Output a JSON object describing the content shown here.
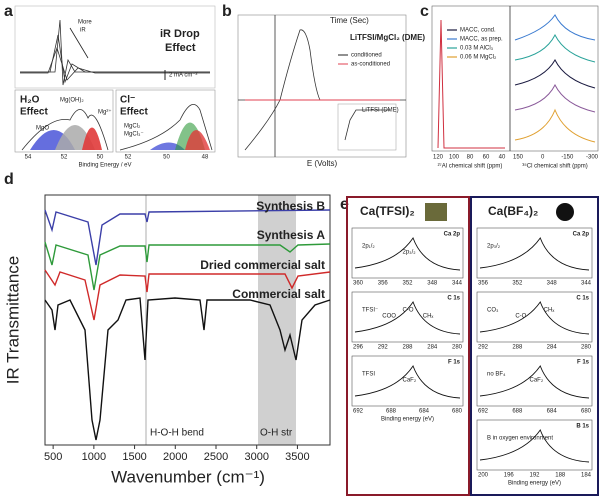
{
  "panel_a": {
    "label": "a",
    "title_1": "iR Drop",
    "title_2": "Effect",
    "arrow_1": "More",
    "arrow_2": "iR",
    "scale": "2 mA cm⁻²",
    "h2o_1": "H₂O",
    "h2o_2": "Effect",
    "cl_1": "Cl⁻",
    "cl_2": "Effect",
    "species": [
      "MgO",
      "Mg(OH)₂",
      "Mg²⁺",
      "MgCl₂",
      "MgCl₃⁻"
    ],
    "xticks_left": [
      54,
      52,
      50
    ],
    "xticks_right": [
      52,
      50,
      48
    ],
    "x_label": "Binding Energy / eV"
  },
  "panel_b": {
    "label": "b",
    "top_label": "Time (Sec)",
    "title": "LiTFSI/MgCl₂ (DME)",
    "legend": [
      "conditioned",
      "as-conditioned"
    ],
    "inset_title": "LiTFSI (DME)",
    "x_label": "E (Volts)"
  },
  "panel_c": {
    "label": "c",
    "legend": [
      "MACC, cond.",
      "MACC, as prep.",
      "0.03 M AlCl₃",
      "0.06 M MgCl₂"
    ],
    "legend_colors": [
      "#1a1a40",
      "#3b7bd0",
      "#2aa39a",
      "#e0a030"
    ],
    "xticks_left": [
      120,
      100,
      80,
      60,
      40
    ],
    "xticks_right": [
      150,
      0,
      -150,
      -300
    ],
    "x_label_left": "²⁷Al chemical shift (ppm)",
    "x_label_right": "³⁵Cl chemical shift (ppm)"
  },
  "panel_d": {
    "label": "d",
    "y_label": "IR Transmittance",
    "x_label": "Wavenumber (cm⁻¹)",
    "xlim": [
      400,
      3900
    ],
    "xticks": [
      500,
      1000,
      1500,
      2000,
      2500,
      3000,
      3500
    ],
    "series": [
      {
        "name": "Synthesis B",
        "color": "#3b3fa8"
      },
      {
        "name": "Synthesis A",
        "color": "#2e9a3a"
      },
      {
        "name": "Dried commercial salt",
        "color": "#d02a2a"
      },
      {
        "name": "Commercial salt",
        "color": "#111111"
      }
    ],
    "annotations": [
      "H-O-H bend",
      "O-H str"
    ]
  },
  "panel_e": {
    "label": "e",
    "x_label": "Binding energy (eV)",
    "columns": [
      {
        "title": "Ca(TFSI)₂",
        "plots": [
          {
            "title": "Ca 2p",
            "ticks": [
              360,
              356,
              352,
              348,
              344
            ],
            "peaks": [
              "2p₁/₂",
              "2p₃/₂"
            ]
          },
          {
            "title": "C 1s",
            "ticks": [
              296,
              292,
              288,
              284,
              280
            ],
            "peaks": [
              "TFSI⁻",
              "COO",
              "C-O",
              "CHₓ"
            ]
          },
          {
            "title": "F 1s",
            "ticks": [
              692,
              688,
              684,
              680
            ],
            "peaks": [
              "TFSI",
              "CaF₂"
            ]
          }
        ]
      },
      {
        "title": "Ca(BF₄)₂",
        "plots": [
          {
            "title": "Ca 2p",
            "ticks": [
              356,
              352,
              348,
              344
            ],
            "peaks": [
              "2p₃/₂"
            ]
          },
          {
            "title": "C 1s",
            "ticks": [
              292,
              288,
              284,
              280
            ],
            "peaks": [
              "CO₃",
              "C-O",
              "CHₓ"
            ]
          },
          {
            "title": "F 1s",
            "ticks": [
              692,
              688,
              684,
              680
            ],
            "peaks": [
              "no BF₄",
              "CaF₂"
            ]
          },
          {
            "title": "B 1s",
            "ticks": [
              200,
              196,
              192,
              188,
              184
            ],
            "peaks": [
              "B in oxygen environment"
            ]
          }
        ]
      }
    ]
  }
}
